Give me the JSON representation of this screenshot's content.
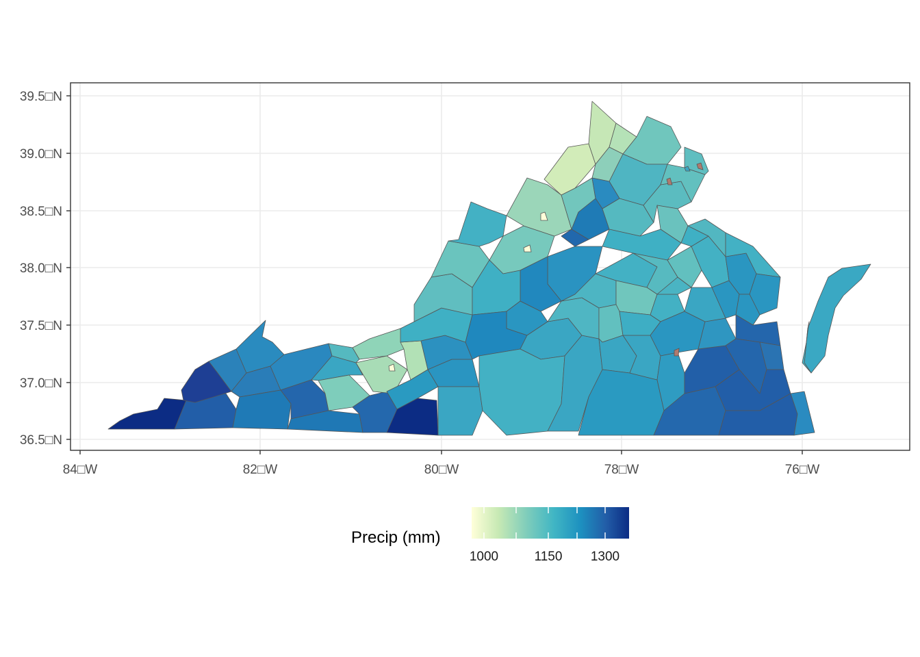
{
  "map": {
    "region": "Virginia counties",
    "fill_variable": "Precip (mm)",
    "axes": {
      "x_ticks": [
        "84□W",
        "82□W",
        "80□W",
        "78□W",
        "76□W"
      ],
      "y_ticks": [
        "39.5□N",
        "39.0□N",
        "38.5□N",
        "38.0□N",
        "37.5□N",
        "37.0□N",
        "36.5□N"
      ]
    },
    "grid": true,
    "colors": {
      "panel_border": "#333333",
      "grid": "#ebebeb",
      "county_border": "#555555",
      "missing": "#b07a6e",
      "palette": [
        "#ffffd9",
        "#c7e9b4",
        "#7fcdbb",
        "#41b6c4",
        "#1d91c0",
        "#225ea8",
        "#0c2c84"
      ]
    }
  },
  "legend": {
    "title": "Precip (mm)",
    "position": "bottom",
    "labels": [
      "1000",
      "1150",
      "1300"
    ]
  }
}
